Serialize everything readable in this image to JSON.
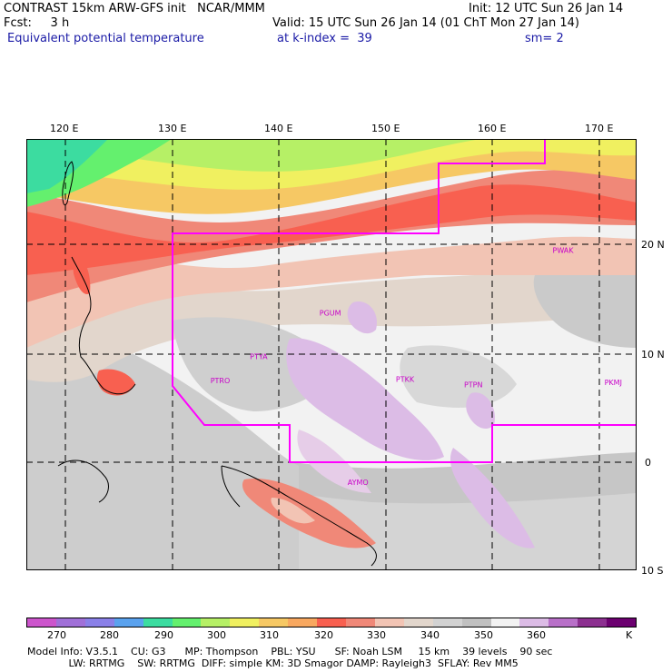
{
  "header": {
    "left_line1": "CONTRAST 15km ARW-GFS init   NCAR/MMM",
    "left_line2": "Fcst:     3 h",
    "left_line3": "Equivalent potential temperature",
    "right_line1": "Init: 12 UTC Sun 26 Jan 14",
    "right_line2": "Valid: 15 UTC Sun 26 Jan 14 (01 ChT Mon 27 Jan 14)",
    "right_line3_a": "at k-index =  39",
    "right_line3_b": "sm= 2"
  },
  "axes": {
    "lon_labels": [
      "120 E",
      "130 E",
      "140 E",
      "150 E",
      "160 E",
      "170 E"
    ],
    "lat_labels": [
      "20 N",
      "10 N",
      "0",
      "10 S"
    ]
  },
  "stations": [
    {
      "id": "PWAK",
      "lon": 166.6,
      "lat": 19.3
    },
    {
      "id": "PGUM",
      "lon": 144.8,
      "lat": 13.5
    },
    {
      "id": "PTYA",
      "lon": 138.1,
      "lat": 9.5
    },
    {
      "id": "PTRO",
      "lon": 134.5,
      "lat": 7.3
    },
    {
      "id": "PTKK",
      "lon": 151.8,
      "lat": 7.4
    },
    {
      "id": "PTPN",
      "lon": 158.2,
      "lat": 6.9
    },
    {
      "id": "PKMJ",
      "lon": 171.3,
      "lat": 7.1
    },
    {
      "id": "AYMO",
      "lon": 147.4,
      "lat": -2.1
    }
  ],
  "colorbar": {
    "labels": [
      "270",
      "280",
      "290",
      "300",
      "310",
      "320",
      "330",
      "340",
      "350",
      "360",
      "K"
    ],
    "colors": [
      "#cc55cc",
      "#a070d8",
      "#8a80e8",
      "#5aa2ee",
      "#3cdca0",
      "#64f06e",
      "#b6f066",
      "#f0f060",
      "#f6c864",
      "#f8a860",
      "#f86050",
      "#f08878",
      "#f2c4b4",
      "#e2d6cc",
      "#d2d2d2",
      "#c0c0c0",
      "#f2f2f2",
      "#dcbce6",
      "#b870c8",
      "#8c3090",
      "#6c0070"
    ]
  },
  "footer": {
    "line1": "Model Info: V3.5.1    CU: G3      MP: Thompson    PBL: YSU      SF: Noah LSM     15 km    39 levels    90 sec",
    "line2": "             LW: RRTMG    SW: RRTMG  DIFF: simple KM: 3D Smagor DAMP: Rayleigh3  SFLAY: Rev MM5"
  }
}
